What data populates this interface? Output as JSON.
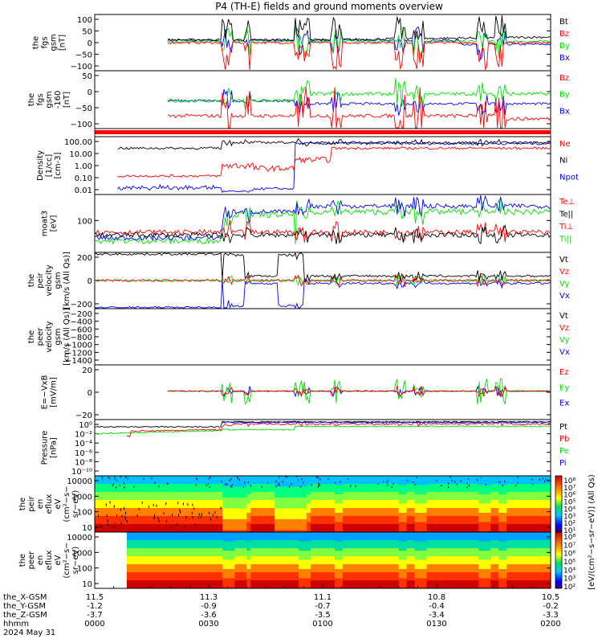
{
  "title": "P4 (TH-E) fields and ground moments overview",
  "colors": {
    "black": "#000000",
    "red": "#ff0000",
    "green": "#00e000",
    "blue": "#0000ff"
  },
  "chart_data": [
    {
      "id": "fgs",
      "type": "line",
      "ylabel": [
        "the",
        "fgs",
        "gsm",
        "[nT]"
      ],
      "yticks": [
        "100",
        "50",
        "0",
        "−50",
        "−100"
      ],
      "ylim": [
        -120,
        110
      ],
      "legend": [
        {
          "name": "Bt",
          "color": "#000000"
        },
        {
          "name": "Bz",
          "color": "#ff0000"
        },
        {
          "name": "By",
          "color": "#00e000"
        },
        {
          "name": "Bx",
          "color": "#0000ff"
        }
      ]
    },
    {
      "id": "fgs_dsl",
      "type": "line",
      "ylabel": [
        "the",
        "fgs",
        "gsm",
        "-160",
        "[nT]"
      ],
      "yticks": [
        "50",
        "0",
        "−50",
        "−100"
      ],
      "ylim": [
        -140,
        100
      ],
      "legend": [
        {
          "name": "Bz",
          "color": "#ff0000"
        },
        {
          "name": "By",
          "color": "#00e000"
        },
        {
          "name": "Bx",
          "color": "#0000ff"
        }
      ]
    },
    {
      "id": "density",
      "type": "line",
      "scale": "log",
      "ylabel": [
        "Density",
        "[1/cc]",
        "[cm-3]"
      ],
      "yticks": [
        "100.00",
        "10.00",
        "1.00",
        "0.10",
        "0.01"
      ],
      "ylim": [
        0.004,
        200
      ],
      "legend": [
        {
          "name": "Ne",
          "color": "#ff0000"
        },
        {
          "name": "Ni",
          "color": "#000000"
        },
        {
          "name": "Npot",
          "color": "#0000ff"
        }
      ]
    },
    {
      "id": "temp",
      "type": "line",
      "scale": "log",
      "ylabel": [
        "moat3",
        "[eV]"
      ],
      "yticks": [
        "100"
      ],
      "legend": [
        {
          "name": "Te⊥",
          "color": "#ff0000"
        },
        {
          "name": "Te||",
          "color": "#000000"
        },
        {
          "name": "Ti⊥",
          "color": "#ff0000"
        },
        {
          "name": "Ti||",
          "color": "#00e000"
        }
      ]
    },
    {
      "id": "peir_vel",
      "type": "line",
      "ylabel": [
        "the",
        "peir",
        "velocity",
        "gsm",
        "[km/s (All Qs)]"
      ],
      "yticks": [
        "200",
        "0",
        "−200"
      ],
      "ylim": [
        -360,
        340
      ],
      "legend": [
        {
          "name": "Vt",
          "color": "#000000"
        },
        {
          "name": "Vz",
          "color": "#ff0000"
        },
        {
          "name": "Vy",
          "color": "#00e000"
        },
        {
          "name": "Vx",
          "color": "#0000ff"
        }
      ]
    },
    {
      "id": "peer_vel",
      "type": "line",
      "ylabel": [
        "the",
        "peer",
        "velocity",
        "gsm",
        "[km/s (All Qs)]"
      ],
      "yticks": [
        "−200",
        "−400",
        "−600",
        "−800",
        "−1000",
        "−1200",
        "−1400"
      ],
      "ylim": [
        -1560,
        0
      ],
      "legend": [
        {
          "name": "Vt",
          "color": "#000000"
        },
        {
          "name": "Vz",
          "color": "#ff0000"
        },
        {
          "name": "Vy",
          "color": "#00e000"
        },
        {
          "name": "Vx",
          "color": "#0000ff"
        }
      ]
    },
    {
      "id": "efield",
      "type": "line",
      "ylabel": [
        "E=−VxB",
        "[mV/m]"
      ],
      "yticks": [
        "20",
        "0",
        "−20"
      ],
      "ylim": [
        -32,
        30
      ],
      "legend": [
        {
          "name": "Ez",
          "color": "#ff0000"
        },
        {
          "name": "Ey",
          "color": "#00e000"
        },
        {
          "name": "Ex",
          "color": "#0000ff"
        }
      ]
    },
    {
      "id": "pressure",
      "type": "line",
      "scale": "log",
      "ylabel": [
        "Pressure",
        "[nPa]"
      ],
      "yticks": [
        "10⁰",
        "10⁻²",
        "10⁻⁴",
        "10⁻⁶",
        "10⁻⁸",
        "10⁻¹⁰"
      ],
      "ylim": [
        1e-11,
        10
      ],
      "legend": [
        {
          "name": "Pt",
          "color": "#000000"
        },
        {
          "name": "Pb",
          "color": "#ff0000"
        },
        {
          "name": "Pe",
          "color": "#00e000"
        },
        {
          "name": "Pi",
          "color": "#0000ff"
        }
      ]
    },
    {
      "id": "peir_spec",
      "type": "heatmap",
      "scale": "log",
      "ylabel": [
        "the",
        "peir",
        "en",
        "eflux",
        "eV",
        "(cm²−s−",
        "sr−eV)"
      ],
      "yticks": [
        "10000",
        "1000",
        "100",
        "10"
      ],
      "ylim": [
        5,
        20000
      ],
      "colorbar": {
        "label": "[eV/(cm²−s−sr−eV)] (All Qs)",
        "ticks": [
          "10⁸",
          "10⁷",
          "10⁶",
          "10⁵",
          "10⁴",
          "10³",
          "10²",
          "10¹"
        ]
      }
    },
    {
      "id": "peer_spec",
      "type": "heatmap",
      "scale": "log",
      "ylabel": [
        "the",
        "peer",
        "en",
        "eflux",
        "eV",
        "(cm²−s−",
        "sr−eV)"
      ],
      "yticks": [
        "10000",
        "1000",
        "100",
        "10"
      ],
      "ylim": [
        5,
        20000
      ],
      "colorbar": {
        "label": "[eV/(cm²−s−sr−eV)] (All Qs)",
        "ticks": [
          "10⁸",
          "10⁷",
          "10⁶",
          "10⁵",
          "10⁴",
          "10³",
          "10²"
        ]
      }
    }
  ],
  "xaxis": {
    "row_labels": [
      "the_X-GSM",
      "the_Y-GSM",
      "the_Z-GSM",
      "hhmm",
      "2024 May 31"
    ],
    "ticks": [
      {
        "x": "11.5",
        "y": "-1.2",
        "z": "-3.7",
        "t": "0000"
      },
      {
        "x": "11.3",
        "y": "-0.9",
        "z": "-3.6",
        "t": "0030"
      },
      {
        "x": "11.1",
        "y": "-0.7",
        "z": "-3.5",
        "t": "0100"
      },
      {
        "x": "10.8",
        "y": "-0.4",
        "z": "-3.4",
        "t": "0130"
      },
      {
        "x": "10.5",
        "y": "-0.2",
        "z": "-3.3",
        "t": "0200"
      }
    ]
  }
}
